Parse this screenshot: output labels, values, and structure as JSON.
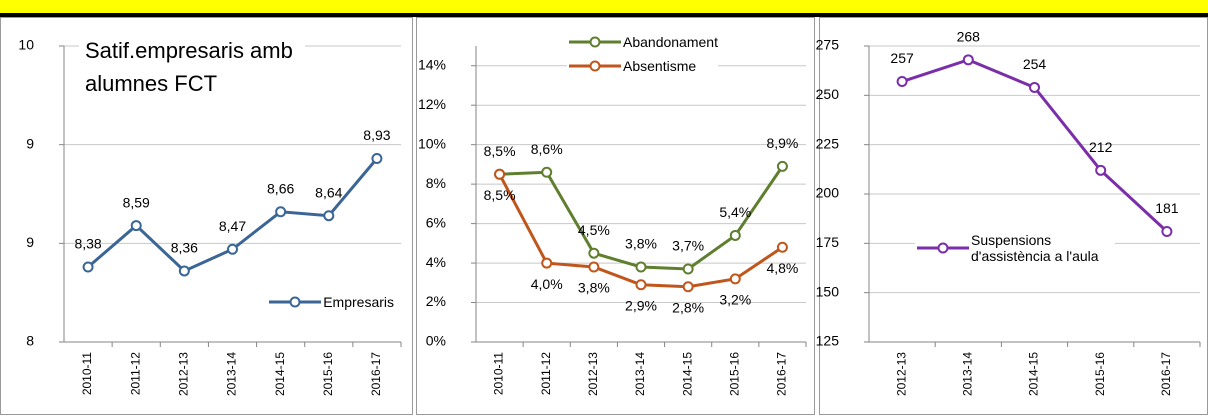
{
  "chart_data": [
    {
      "type": "line",
      "title": "Satif.empresaris amb alumnes FCT",
      "categories": [
        "2010-11",
        "2011-12",
        "2012-13",
        "2013-14",
        "2014-15",
        "2015-16",
        "2016-17"
      ],
      "series": [
        {
          "name": "Empresaris",
          "color": "#3a6596",
          "values": [
            8.38,
            8.59,
            8.36,
            8.47,
            8.66,
            8.64,
            8.93
          ],
          "value_labels": [
            "8,38",
            "8,59",
            "8,36",
            "8,47",
            "8,66",
            "8,64",
            "8,93"
          ]
        }
      ],
      "ylim": [
        8,
        9.5
      ],
      "yticks": [
        8,
        {
          "value": 8.5,
          "label": "9"
        },
        9,
        {
          "value": 9.5,
          "label": "10"
        }
      ],
      "grid": true,
      "legend": "lower right"
    },
    {
      "type": "line",
      "categories": [
        "2010-11",
        "2011-12",
        "2012-13",
        "2013-14",
        "2014-15",
        "2015-16",
        "2016-17"
      ],
      "series": [
        {
          "name": "Abandonament",
          "color": "#5f7f2f",
          "values": [
            8.5,
            8.6,
            4.5,
            3.8,
            3.7,
            5.4,
            8.9
          ],
          "value_labels": [
            "8,5%",
            "8,6%",
            "4,5%",
            "3,8%",
            "3,7%",
            "5,4%",
            "8,9%"
          ]
        },
        {
          "name": "Absentisme",
          "color": "#c0561b",
          "values": [
            8.5,
            4.0,
            3.8,
            2.9,
            2.8,
            3.2,
            4.8
          ],
          "value_labels": [
            "8,5%",
            "4,0%",
            "3,8%",
            "2,9%",
            "2,8%",
            "3,2%",
            "4,8%"
          ]
        }
      ],
      "ylim": [
        0,
        15
      ],
      "yticks": [
        {
          "value": 0,
          "label": "0%"
        },
        {
          "value": 2,
          "label": "2%"
        },
        {
          "value": 4,
          "label": "4%"
        },
        {
          "value": 6,
          "label": "6%"
        },
        {
          "value": 8,
          "label": "8%"
        },
        {
          "value": 10,
          "label": "10%"
        },
        {
          "value": 12,
          "label": "12%"
        },
        {
          "value": 14,
          "label": "14%"
        }
      ],
      "grid": true,
      "legend": "upper center"
    },
    {
      "type": "line",
      "categories": [
        "2012-13",
        "2013-14",
        "2014-15",
        "2015-16",
        "2016-17"
      ],
      "series": [
        {
          "name": "Suspensions d'assistència a l'aula",
          "color": "#7a2fa8",
          "values": [
            257,
            268,
            254,
            212,
            181
          ]
        }
      ],
      "ylim": [
        125,
        275
      ],
      "yticks": [
        125,
        150,
        175,
        200,
        225,
        250,
        275
      ],
      "grid": true,
      "legend": "center right"
    }
  ]
}
